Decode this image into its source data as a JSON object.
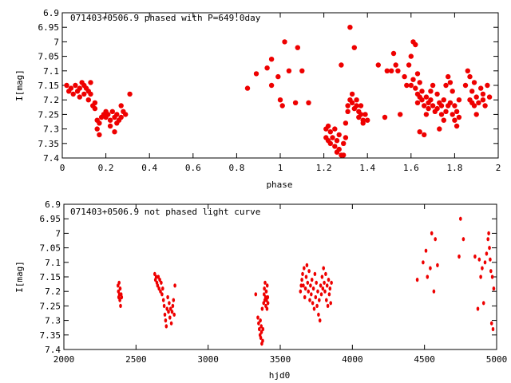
{
  "chart_data": [
    {
      "type": "scatter",
      "title": "071403+0506.9 phased with P=649.0day",
      "xlabel": "phase",
      "ylabel": "I[mag]",
      "xlim": [
        0,
        2
      ],
      "ylim": [
        6.9,
        7.4
      ],
      "y_inverted": true,
      "grid": false,
      "x_ticks": [
        0,
        0.2,
        0.4,
        0.6,
        0.8,
        1,
        1.2,
        1.4,
        1.6,
        1.8,
        2
      ],
      "y_ticks": [
        6.9,
        6.95,
        7,
        7.05,
        7.1,
        7.15,
        7.2,
        7.25,
        7.3,
        7.35,
        7.4
      ],
      "marker_color": "#ee0000",
      "points": [
        [
          0.02,
          7.15
        ],
        [
          0.03,
          7.17
        ],
        [
          0.04,
          7.16
        ],
        [
          0.05,
          7.18
        ],
        [
          0.06,
          7.15
        ],
        [
          0.07,
          7.17
        ],
        [
          0.08,
          7.16
        ],
        [
          0.08,
          7.19
        ],
        [
          0.09,
          7.14
        ],
        [
          0.1,
          7.18
        ],
        [
          0.1,
          7.15
        ],
        [
          0.11,
          7.16
        ],
        [
          0.12,
          7.2
        ],
        [
          0.12,
          7.17
        ],
        [
          0.13,
          7.14
        ],
        [
          0.13,
          7.18
        ],
        [
          0.14,
          7.22
        ],
        [
          0.15,
          7.23
        ],
        [
          0.15,
          7.21
        ],
        [
          0.16,
          7.27
        ],
        [
          0.16,
          7.3
        ],
        [
          0.17,
          7.32
        ],
        [
          0.17,
          7.28
        ],
        [
          0.18,
          7.26
        ],
        [
          0.19,
          7.25
        ],
        [
          0.2,
          7.24
        ],
        [
          0.2,
          7.26
        ],
        [
          0.21,
          7.25
        ],
        [
          0.22,
          7.27
        ],
        [
          0.22,
          7.29
        ],
        [
          0.23,
          7.24
        ],
        [
          0.24,
          7.26
        ],
        [
          0.24,
          7.31
        ],
        [
          0.25,
          7.28
        ],
        [
          0.25,
          7.25
        ],
        [
          0.26,
          7.27
        ],
        [
          0.27,
          7.22
        ],
        [
          0.27,
          7.26
        ],
        [
          0.28,
          7.24
        ],
        [
          0.29,
          7.25
        ],
        [
          0.31,
          7.18
        ],
        [
          0.85,
          7.16
        ],
        [
          0.89,
          7.11
        ],
        [
          0.94,
          7.09
        ],
        [
          0.96,
          7.06
        ],
        [
          0.96,
          7.15
        ],
        [
          0.99,
          7.12
        ],
        [
          1.0,
          7.2
        ],
        [
          1.01,
          7.22
        ],
        [
          1.02,
          7.0
        ],
        [
          1.04,
          7.1
        ],
        [
          1.07,
          7.21
        ],
        [
          1.08,
          7.02
        ],
        [
          1.1,
          7.1
        ],
        [
          1.13,
          7.21
        ],
        [
          1.21,
          7.3
        ],
        [
          1.21,
          7.33
        ],
        [
          1.22,
          7.29
        ],
        [
          1.22,
          7.34
        ],
        [
          1.23,
          7.31
        ],
        [
          1.23,
          7.35
        ],
        [
          1.24,
          7.33
        ],
        [
          1.25,
          7.3
        ],
        [
          1.25,
          7.36
        ],
        [
          1.26,
          7.34
        ],
        [
          1.26,
          7.38
        ],
        [
          1.27,
          7.37
        ],
        [
          1.27,
          7.32
        ],
        [
          1.28,
          7.39
        ],
        [
          1.28,
          7.08
        ],
        [
          1.29,
          7.35
        ],
        [
          1.29,
          7.39
        ],
        [
          1.3,
          7.28
        ],
        [
          1.3,
          7.33
        ],
        [
          1.31,
          7.24
        ],
        [
          1.31,
          7.22
        ],
        [
          1.32,
          7.2
        ],
        [
          1.32,
          6.95
        ],
        [
          1.33,
          7.21
        ],
        [
          1.33,
          7.18
        ],
        [
          1.34,
          7.23
        ],
        [
          1.34,
          7.02
        ],
        [
          1.35,
          7.2
        ],
        [
          1.35,
          7.22
        ],
        [
          1.36,
          7.24
        ],
        [
          1.36,
          7.26
        ],
        [
          1.37,
          7.22
        ],
        [
          1.37,
          7.25
        ],
        [
          1.38,
          7.27
        ],
        [
          1.38,
          7.28
        ],
        [
          1.39,
          7.25
        ],
        [
          1.4,
          7.27
        ],
        [
          1.45,
          7.08
        ],
        [
          1.48,
          7.26
        ],
        [
          1.49,
          7.1
        ],
        [
          1.51,
          7.1
        ],
        [
          1.52,
          7.04
        ],
        [
          1.53,
          7.08
        ],
        [
          1.54,
          7.1
        ],
        [
          1.55,
          7.25
        ],
        [
          1.57,
          7.12
        ],
        [
          1.58,
          7.15
        ],
        [
          1.59,
          7.08
        ],
        [
          1.6,
          7.05
        ],
        [
          1.6,
          7.15
        ],
        [
          1.61,
          7.0
        ],
        [
          1.61,
          7.13
        ],
        [
          1.62,
          7.01
        ],
        [
          1.62,
          7.16
        ],
        [
          1.63,
          7.18
        ],
        [
          1.63,
          7.21
        ],
        [
          1.63,
          7.11
        ],
        [
          1.64,
          7.19
        ],
        [
          1.64,
          7.31
        ],
        [
          1.64,
          7.14
        ],
        [
          1.65,
          7.2
        ],
        [
          1.65,
          7.17
        ],
        [
          1.66,
          7.22
        ],
        [
          1.66,
          7.32
        ],
        [
          1.67,
          7.19
        ],
        [
          1.67,
          7.25
        ],
        [
          1.68,
          7.21
        ],
        [
          1.68,
          7.23
        ],
        [
          1.69,
          7.2
        ],
        [
          1.69,
          7.17
        ],
        [
          1.7,
          7.22
        ],
        [
          1.7,
          7.15
        ],
        [
          1.71,
          7.24
        ],
        [
          1.72,
          7.23
        ],
        [
          1.72,
          7.18
        ],
        [
          1.73,
          7.21
        ],
        [
          1.73,
          7.3
        ],
        [
          1.74,
          7.22
        ],
        [
          1.74,
          7.25
        ],
        [
          1.75,
          7.2
        ],
        [
          1.75,
          7.27
        ],
        [
          1.76,
          7.24
        ],
        [
          1.76,
          7.15
        ],
        [
          1.77,
          7.22
        ],
        [
          1.77,
          7.12
        ],
        [
          1.78,
          7.21
        ],
        [
          1.78,
          7.14
        ],
        [
          1.79,
          7.17
        ],
        [
          1.79,
          7.25
        ],
        [
          1.8,
          7.22
        ],
        [
          1.8,
          7.27
        ],
        [
          1.81,
          7.24
        ],
        [
          1.81,
          7.29
        ],
        [
          1.82,
          7.26
        ],
        [
          1.82,
          7.2
        ],
        [
          1.85,
          7.15
        ],
        [
          1.86,
          7.1
        ],
        [
          1.87,
          7.12
        ],
        [
          1.87,
          7.2
        ],
        [
          1.88,
          7.17
        ],
        [
          1.88,
          7.21
        ],
        [
          1.89,
          7.14
        ],
        [
          1.89,
          7.22
        ],
        [
          1.9,
          7.19
        ],
        [
          1.9,
          7.25
        ],
        [
          1.91,
          7.21
        ],
        [
          1.92,
          7.16
        ],
        [
          1.93,
          7.2
        ],
        [
          1.93,
          7.18
        ],
        [
          1.94,
          7.22
        ],
        [
          1.95,
          7.15
        ],
        [
          1.96,
          7.19
        ]
      ]
    },
    {
      "type": "scatter",
      "title": "071403+0506.9 not phased light curve",
      "xlabel": "hjd0",
      "ylabel": "I[mag]",
      "xlim": [
        2000,
        5000
      ],
      "ylim": [
        6.9,
        7.4
      ],
      "y_inverted": true,
      "grid": false,
      "x_ticks": [
        2000,
        2500,
        3000,
        3500,
        4000,
        4500,
        5000
      ],
      "y_ticks": [
        6.9,
        6.95,
        7,
        7.05,
        7.1,
        7.15,
        7.2,
        7.25,
        7.3,
        7.35,
        7.4
      ],
      "marker_color": "#ee0000",
      "points": [
        [
          2375,
          7.18
        ],
        [
          2378,
          7.2
        ],
        [
          2380,
          7.22
        ],
        [
          2383,
          7.17
        ],
        [
          2385,
          7.21
        ],
        [
          2388,
          7.23
        ],
        [
          2390,
          7.19
        ],
        [
          2393,
          7.25
        ],
        [
          2397,
          7.21
        ],
        [
          2400,
          7.22
        ],
        [
          2630,
          7.14
        ],
        [
          2635,
          7.16
        ],
        [
          2640,
          7.15
        ],
        [
          2645,
          7.17
        ],
        [
          2650,
          7.18
        ],
        [
          2655,
          7.15
        ],
        [
          2660,
          7.19
        ],
        [
          2665,
          7.16
        ],
        [
          2670,
          7.2
        ],
        [
          2675,
          7.17
        ],
        [
          2680,
          7.21
        ],
        [
          2685,
          7.19
        ],
        [
          2690,
          7.23
        ],
        [
          2695,
          7.25
        ],
        [
          2700,
          7.28
        ],
        [
          2705,
          7.3
        ],
        [
          2710,
          7.32
        ],
        [
          2715,
          7.26
        ],
        [
          2720,
          7.22
        ],
        [
          2725,
          7.27
        ],
        [
          2730,
          7.24
        ],
        [
          2735,
          7.29
        ],
        [
          2740,
          7.26
        ],
        [
          2745,
          7.31
        ],
        [
          2750,
          7.27
        ],
        [
          2755,
          7.25
        ],
        [
          2760,
          7.23
        ],
        [
          2765,
          7.28
        ],
        [
          2770,
          7.18
        ],
        [
          3330,
          7.21
        ],
        [
          3345,
          7.29
        ],
        [
          3350,
          7.31
        ],
        [
          3355,
          7.33
        ],
        [
          3360,
          7.35
        ],
        [
          3362,
          7.3
        ],
        [
          3365,
          7.36
        ],
        [
          3368,
          7.32
        ],
        [
          3370,
          7.34
        ],
        [
          3372,
          7.38
        ],
        [
          3375,
          7.26
        ],
        [
          3378,
          7.37
        ],
        [
          3380,
          7.33
        ],
        [
          3385,
          7.24
        ],
        [
          3388,
          7.21
        ],
        [
          3390,
          7.19
        ],
        [
          3393,
          7.23
        ],
        [
          3395,
          7.17
        ],
        [
          3398,
          7.22
        ],
        [
          3400,
          7.25
        ],
        [
          3403,
          7.2
        ],
        [
          3405,
          7.23
        ],
        [
          3408,
          7.26
        ],
        [
          3410,
          7.18
        ],
        [
          3413,
          7.22
        ],
        [
          3415,
          7.24
        ],
        [
          3640,
          7.2
        ],
        [
          3645,
          7.18
        ],
        [
          3650,
          7.16
        ],
        [
          3655,
          7.14
        ],
        [
          3660,
          7.18
        ],
        [
          3665,
          7.12
        ],
        [
          3670,
          7.22
        ],
        [
          3675,
          7.19
        ],
        [
          3680,
          7.15
        ],
        [
          3685,
          7.11
        ],
        [
          3690,
          7.17
        ],
        [
          3695,
          7.2
        ],
        [
          3700,
          7.13
        ],
        [
          3705,
          7.23
        ],
        [
          3710,
          7.18
        ],
        [
          3715,
          7.21
        ],
        [
          3720,
          7.16
        ],
        [
          3725,
          7.24
        ],
        [
          3730,
          7.19
        ],
        [
          3735,
          7.26
        ],
        [
          3740,
          7.14
        ],
        [
          3745,
          7.22
        ],
        [
          3750,
          7.17
        ],
        [
          3755,
          7.25
        ],
        [
          3760,
          7.2
        ],
        [
          3765,
          7.28
        ],
        [
          3770,
          7.23
        ],
        [
          3775,
          7.3
        ],
        [
          3780,
          7.18
        ],
        [
          3785,
          7.21
        ],
        [
          3790,
          7.15
        ],
        [
          3795,
          7.19
        ],
        [
          3800,
          7.12
        ],
        [
          3805,
          7.17
        ],
        [
          3810,
          7.2
        ],
        [
          3815,
          7.14
        ],
        [
          3820,
          7.23
        ],
        [
          3825,
          7.18
        ],
        [
          3830,
          7.25
        ],
        [
          3835,
          7.16
        ],
        [
          3840,
          7.21
        ],
        [
          3845,
          7.19
        ],
        [
          3850,
          7.24
        ],
        [
          3855,
          7.17
        ],
        [
          4450,
          7.16
        ],
        [
          4490,
          7.1
        ],
        [
          4510,
          7.06
        ],
        [
          4520,
          7.15
        ],
        [
          4540,
          7.12
        ],
        [
          4550,
          7.0
        ],
        [
          4565,
          7.2
        ],
        [
          4575,
          7.02
        ],
        [
          4590,
          7.11
        ],
        [
          4740,
          7.08
        ],
        [
          4750,
          6.95
        ],
        [
          4770,
          7.02
        ],
        [
          4850,
          7.08
        ],
        [
          4870,
          7.26
        ],
        [
          4880,
          7.09
        ],
        [
          4890,
          7.15
        ],
        [
          4900,
          7.12
        ],
        [
          4910,
          7.24
        ],
        [
          4920,
          7.1
        ],
        [
          4930,
          7.07
        ],
        [
          4940,
          7.02
        ],
        [
          4945,
          7.0
        ],
        [
          4950,
          7.05
        ],
        [
          4955,
          7.09
        ],
        [
          4960,
          7.13
        ],
        [
          4965,
          7.31
        ],
        [
          4970,
          7.15
        ],
        [
          4975,
          7.33
        ],
        [
          4980,
          7.19
        ]
      ]
    }
  ]
}
